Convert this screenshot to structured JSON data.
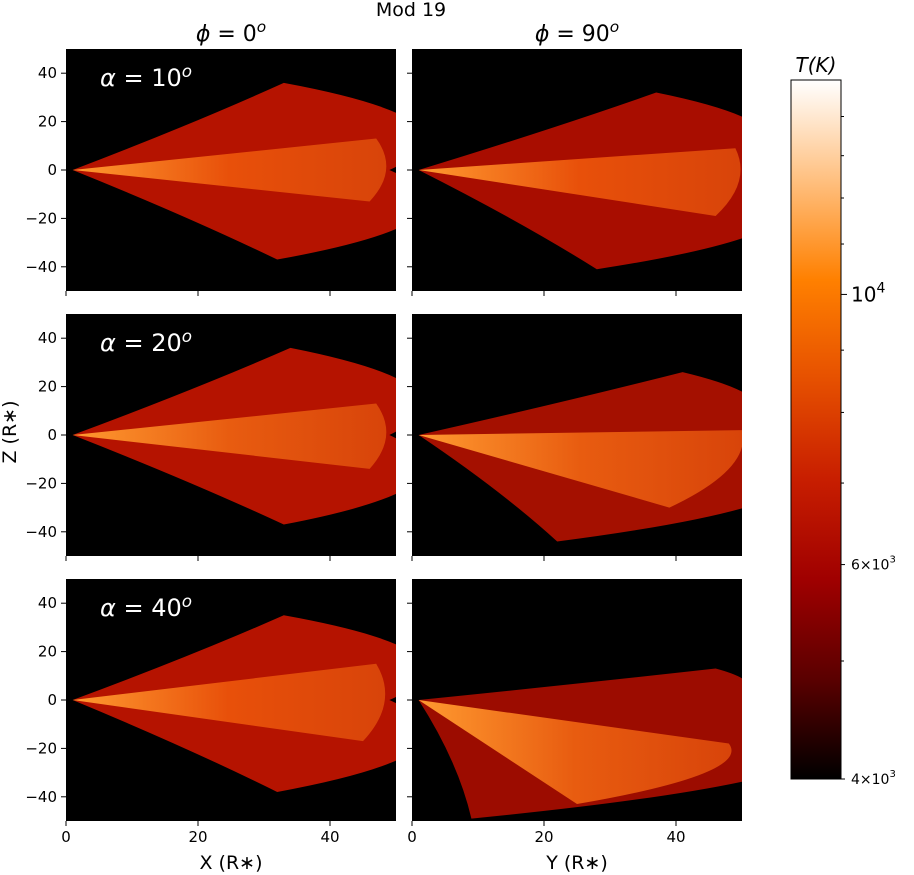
{
  "chart_data": {
    "type": "heatmap",
    "title": "Mod 19",
    "column_titles": [
      {
        "symbol": "ϕ",
        "text": " = 0",
        "sup": "o"
      },
      {
        "symbol": "ϕ",
        "text": " = 90",
        "sup": "o"
      }
    ],
    "row_labels": [
      {
        "symbol": "α",
        "text": " = 10",
        "sup": "o"
      },
      {
        "symbol": "α",
        "text": " = 20",
        "sup": "o"
      },
      {
        "symbol": "α",
        "text": " = 40",
        "sup": "o"
      }
    ],
    "xlabels": [
      "X (R∗)",
      "Y (R∗)"
    ],
    "ylabel": "Z (R∗)",
    "xlim": [
      0,
      50
    ],
    "ylim": [
      -50,
      50
    ],
    "xticks": [
      "0",
      "20",
      "40"
    ],
    "yticks": [
      "40",
      "20",
      "0",
      "−20",
      "−40"
    ],
    "xtick_values": [
      0,
      20,
      40
    ],
    "ytick_values": [
      40,
      20,
      0,
      -20,
      -40
    ],
    "background_color": "#000000",
    "colorbar": {
      "label": "T(K)",
      "scale": "log",
      "range": [
        4000,
        15000
      ],
      "major_ticks": [
        {
          "value": 10000,
          "base": "10",
          "exp": "4"
        }
      ],
      "minor_ticks": [
        {
          "value": 6000,
          "mant": "6",
          "base": "10",
          "exp": "3"
        },
        {
          "value": 4000,
          "mant": "4",
          "base": "10",
          "exp": "3"
        }
      ],
      "colormap": [
        "#000000",
        "#5a0000",
        "#a00000",
        "#c81e00",
        "#e65000",
        "#ff8000",
        "#ffc080",
        "#ffffff"
      ]
    },
    "panels": [
      {
        "row": 0,
        "col": 0,
        "apex": [
          1,
          0
        ],
        "top": [
          33,
          36
        ],
        "right": [
          49,
          0
        ],
        "bottom": [
          32,
          -37
        ],
        "wedge_upper": [
          47,
          13
        ],
        "wedge_lower": [
          46,
          -13
        ],
        "outer_color": "#b51300",
        "inner_color": "#e8500a"
      },
      {
        "row": 0,
        "col": 1,
        "apex": [
          1,
          0
        ],
        "top": [
          37,
          32
        ],
        "right": [
          50,
          0
        ],
        "bottom": [
          28,
          -41
        ],
        "wedge_upper": [
          49,
          9
        ],
        "wedge_lower": [
          46,
          -19
        ],
        "outer_color": "#a80d00",
        "inner_color": "#e8500a"
      },
      {
        "row": 1,
        "col": 0,
        "apex": [
          1,
          0
        ],
        "top": [
          34,
          36
        ],
        "right": [
          49,
          0
        ],
        "bottom": [
          33,
          -37
        ],
        "wedge_upper": [
          47,
          13
        ],
        "wedge_lower": [
          46,
          -14
        ],
        "outer_color": "#b51300",
        "inner_color": "#e85c10"
      },
      {
        "row": 1,
        "col": 1,
        "apex": [
          1,
          0
        ],
        "top": [
          41,
          26
        ],
        "right": [
          50,
          0
        ],
        "bottom": [
          22,
          -44
        ],
        "wedge_upper": [
          50,
          2
        ],
        "wedge_lower": [
          39,
          -30
        ],
        "outer_color": "#a41000",
        "inner_color": "#e85c10"
      },
      {
        "row": 2,
        "col": 0,
        "apex": [
          1,
          0
        ],
        "top": [
          33,
          35
        ],
        "right": [
          49,
          0
        ],
        "bottom": [
          32,
          -38
        ],
        "wedge_upper": [
          47,
          15
        ],
        "wedge_lower": [
          45,
          -17
        ],
        "outer_color": "#b51300",
        "inner_color": "#e8500a"
      },
      {
        "row": 2,
        "col": 1,
        "apex": [
          1,
          0
        ],
        "top": [
          46,
          13
        ],
        "right": [
          50,
          0
        ],
        "bottom": [
          9,
          -49
        ],
        "wedge_upper": [
          48,
          -18
        ],
        "wedge_lower": [
          25,
          -43
        ],
        "outer_color": "#9c0c00",
        "inner_color": "#e85c10"
      }
    ]
  }
}
